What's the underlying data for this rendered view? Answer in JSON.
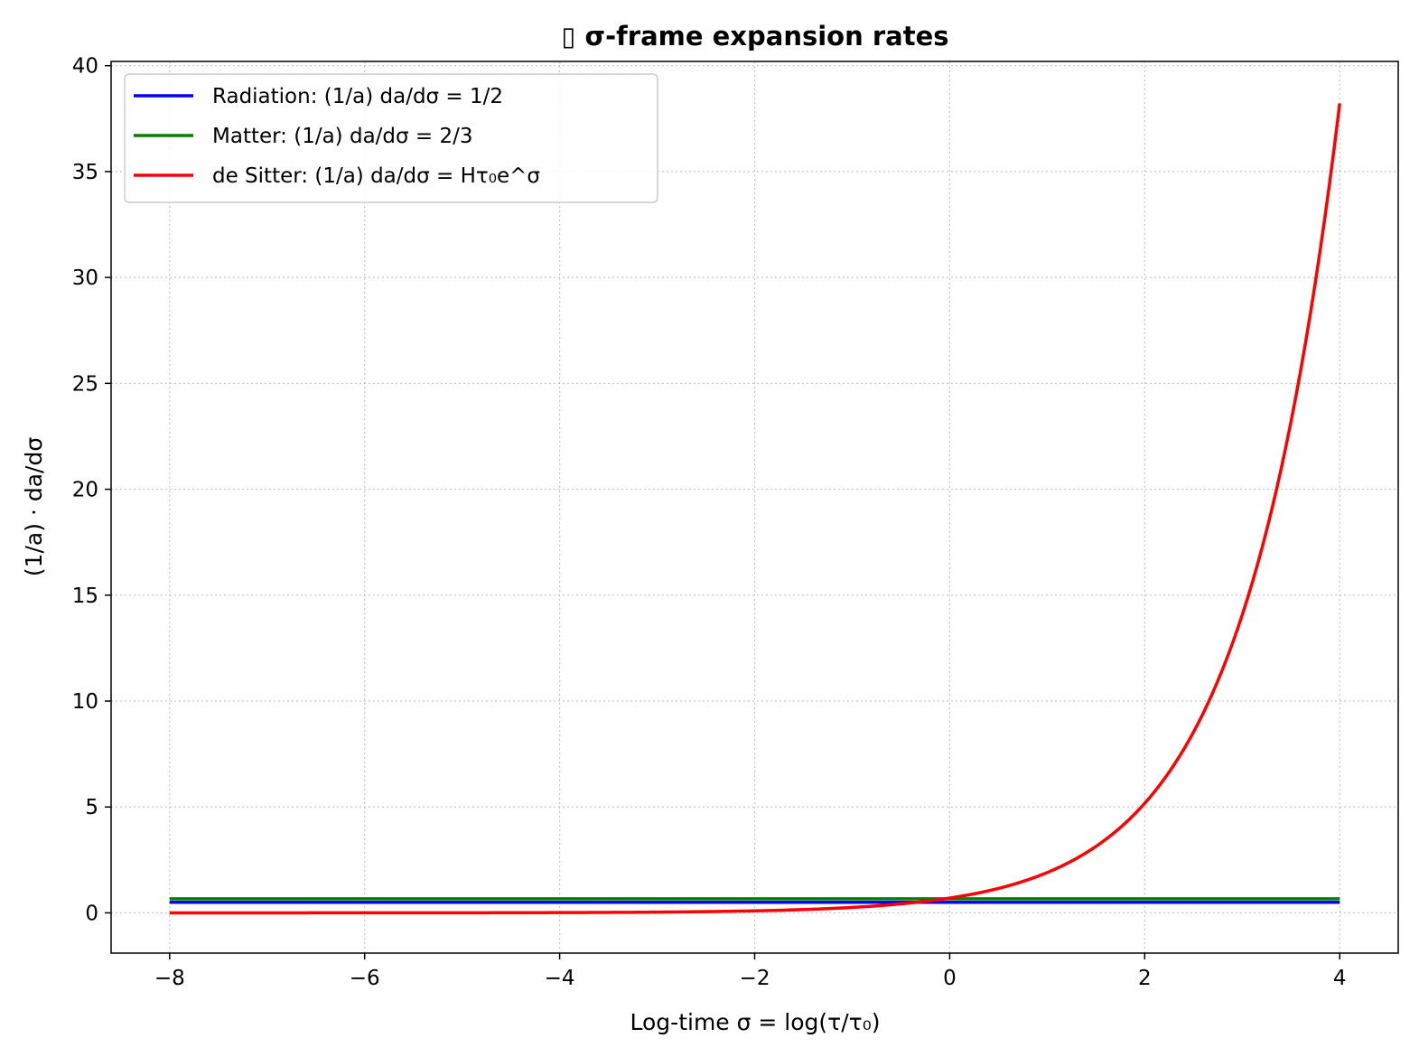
{
  "chart_data": {
    "type": "line",
    "title": "▯ σ-frame expansion rates",
    "xlabel": "Log-time σ = log(τ/τ₀)",
    "ylabel": "(1/a) · da/dσ",
    "xlim": [
      -8.6,
      4.6
    ],
    "ylim": [
      -1.9,
      40.2
    ],
    "xticks": [
      -8,
      -6,
      -4,
      -2,
      0,
      2,
      4
    ],
    "xtick_labels": [
      "−8",
      "−6",
      "−4",
      "−2",
      "0",
      "2",
      "4"
    ],
    "yticks": [
      0,
      5,
      10,
      15,
      20,
      25,
      30,
      35,
      40
    ],
    "ytick_labels": [
      "0",
      "5",
      "10",
      "15",
      "20",
      "25",
      "30",
      "35",
      "40"
    ],
    "grid": true,
    "legend_position": "top-left",
    "series": [
      {
        "name": "Radiation: (1/a) da/dσ = 1/2",
        "color": "#0000ff",
        "x": [
          -8,
          4
        ],
        "y": [
          0.5,
          0.5
        ]
      },
      {
        "name": "Matter: (1/a) da/dσ = 2/3",
        "color": "#008000",
        "x": [
          -8,
          4
        ],
        "y": [
          0.667,
          0.667
        ]
      },
      {
        "name": "de Sitter: (1/a) da/dσ = Hτ₀e^σ",
        "color": "#ff0000",
        "x": [
          -8,
          -6,
          -4,
          -3,
          -2,
          -1.5,
          -1,
          -0.5,
          0,
          0.5,
          1,
          1.5,
          2,
          2.5,
          3,
          3.5,
          4
        ],
        "y": [
          0.0002,
          0.0017,
          0.0128,
          0.035,
          0.095,
          0.156,
          0.257,
          0.424,
          0.7,
          1.154,
          1.903,
          3.137,
          5.172,
          8.528,
          14.06,
          23.18,
          38.22
        ]
      }
    ]
  }
}
